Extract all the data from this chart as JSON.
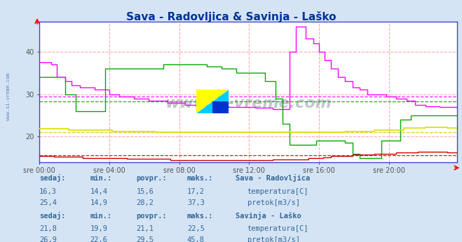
{
  "title": "Sava - Radovljica & Savinja - Laško",
  "title_color": "#003399",
  "bg_color": "#d4e4f4",
  "plot_bg_color": "#ffffff",
  "watermark": "www.si-vreme.com",
  "xlabel_ticks": [
    "sre 00:00",
    "sre 04:00",
    "sre 08:00",
    "sre 12:00",
    "sre 16:00",
    "sre 20:00"
  ],
  "ylim_min": 14,
  "ylim_max": 47,
  "yticks": [
    20,
    30,
    40
  ],
  "avg_line_red": 15.6,
  "avg_line_green": 28.2,
  "avg_line_yellow": 21.1,
  "avg_line_magenta": 29.5,
  "sava_title": "Sava - Radovljica",
  "savinja_title": "Savinja - Laško",
  "sava_temp_label": "temperatura[C]",
  "sava_pretok_label": "pretok[m3/s]",
  "savinja_temp_label": "temperatura[C]",
  "savinja_pretok_label": "pretok[m3/s]",
  "sava_temp_color": "#cc0000",
  "sava_pretok_color": "#00aa00",
  "savinja_temp_color": "#dddd00",
  "savinja_pretok_color": "#ff00ff",
  "table_color": "#336699",
  "sava_temp_sedaj": "16,3",
  "sava_temp_min": "14,4",
  "sava_temp_povpr": "15,6",
  "sava_temp_maks": "17,2",
  "sava_pretok_sedaj": "25,4",
  "sava_pretok_min": "14,9",
  "sava_pretok_povpr": "28,2",
  "sava_pretok_maks": "37,3",
  "savinja_temp_sedaj": "21,8",
  "savinja_temp_min": "19,9",
  "savinja_temp_povpr": "21,1",
  "savinja_temp_maks": "22,5",
  "savinja_pretok_sedaj": "26,9",
  "savinja_pretok_min": "22,6",
  "savinja_pretok_povpr": "29,5",
  "savinja_pretok_maks": "45,8",
  "logo_yellow": "#ffff00",
  "logo_cyan": "#00ccff",
  "logo_blue": "#0033cc"
}
